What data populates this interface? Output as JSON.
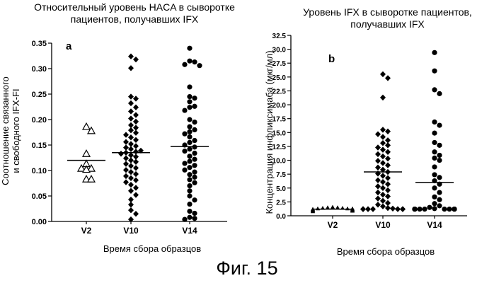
{
  "figure_caption": "Фиг. 15",
  "chart_data": [
    {
      "type": "scatter",
      "panel_label": "a",
      "title": "Относительный уровень HACA в сыворотке пациентов, получавших IFX",
      "title_lines": [
        "Относительный уровень HACA в сыворотке",
        "пациентов, получавших IFX"
      ],
      "xlabel": "Время сбора образцов",
      "ylabel": "Соотношение связанного и свободного IFX-FI",
      "ylabel_lines": [
        "Соотношение связанного",
        "и свободного IFX-FI"
      ],
      "categories": [
        "V2",
        "V10",
        "V14"
      ],
      "ylim": [
        0,
        0.35
      ],
      "yticks": [
        "0.00",
        "0.05",
        "0.10",
        "0.15",
        "0.20",
        "0.25",
        "0.30",
        "0.35"
      ],
      "grid": false,
      "series": [
        {
          "category": "V2",
          "marker": "triangle-open",
          "median": 0.12,
          "values": [
            0.186,
            0.178,
            0.133,
            0.113,
            0.104,
            0.104,
            0.102,
            0.083,
            0.083
          ]
        },
        {
          "category": "V10",
          "marker": "diamond",
          "median": 0.135,
          "values": [
            0.324,
            0.318,
            0.301,
            0.245,
            0.241,
            0.232,
            0.224,
            0.216,
            0.209,
            0.202,
            0.196,
            0.189,
            0.184,
            0.179,
            0.174,
            0.17,
            0.165,
            0.16,
            0.156,
            0.152,
            0.148,
            0.145,
            0.142,
            0.139,
            0.137,
            0.135,
            0.133,
            0.13,
            0.127,
            0.124,
            0.12,
            0.117,
            0.113,
            0.109,
            0.105,
            0.101,
            0.097,
            0.093,
            0.089,
            0.085,
            0.081,
            0.077,
            0.072,
            0.066,
            0.06,
            0.052,
            0.043,
            0.033,
            0.022,
            0.015,
            0.004
          ]
        },
        {
          "category": "V14",
          "marker": "circle",
          "median": 0.147,
          "values": [
            0.34,
            0.315,
            0.313,
            0.308,
            0.306,
            0.264,
            0.245,
            0.242,
            0.235,
            0.226,
            0.224,
            0.218,
            0.2,
            0.195,
            0.186,
            0.18,
            0.176,
            0.172,
            0.166,
            0.159,
            0.155,
            0.15,
            0.146,
            0.142,
            0.138,
            0.134,
            0.128,
            0.122,
            0.118,
            0.114,
            0.11,
            0.106,
            0.101,
            0.097,
            0.092,
            0.087,
            0.082,
            0.076,
            0.07,
            0.06,
            0.05,
            0.042,
            0.034,
            0.02,
            0.016,
            0.008,
            0.006,
            0.004
          ]
        }
      ]
    },
    {
      "type": "scatter",
      "panel_label": "b",
      "title": "Уровень IFX в сыворотке пациентов, получавших IFX",
      "title_lines": [
        "Уровень IFX в сыворотке пациентов,",
        "получавших IFX"
      ],
      "xlabel": "Время сбора образцов",
      "ylabel": "Концентрация инфликсимаба (мкг/мл)",
      "categories": [
        "V2",
        "V10",
        "V14"
      ],
      "ylim": [
        0,
        32.5
      ],
      "yticks": [
        "0.0",
        "2.5",
        "5.0",
        "7.5",
        "10.0",
        "12.5",
        "15.0",
        "17.5",
        "20.0",
        "22.5",
        "25.0",
        "27.5",
        "30.0",
        "32.5"
      ],
      "grid": false,
      "series": [
        {
          "category": "V2",
          "marker": "triangle-filled",
          "median": 1.2,
          "values": [
            1.6,
            1.5,
            1.5,
            1.4,
            1.4,
            1.3,
            1.3,
            1.3,
            1.2,
            1.2,
            1.2,
            1.1,
            1.1,
            1.1,
            1.0,
            1.0,
            1.0,
            0.9,
            0.9,
            0.8
          ]
        },
        {
          "category": "V10",
          "marker": "diamond",
          "median": 7.9,
          "values": [
            25.5,
            24.8,
            21.3,
            15.5,
            15.2,
            14.7,
            14.2,
            13.6,
            13.1,
            12.7,
            12.3,
            11.9,
            11.5,
            11.1,
            10.7,
            10.3,
            9.9,
            9.5,
            9.1,
            8.7,
            8.3,
            7.9,
            7.6,
            7.2,
            6.8,
            6.4,
            6.1,
            5.7,
            5.3,
            5.0,
            4.6,
            4.2,
            3.8,
            3.5,
            3.1,
            2.7,
            2.3,
            2.0,
            1.7,
            1.4,
            1.3,
            1.2,
            1.2,
            1.2,
            1.2,
            1.2,
            1.2,
            1.2
          ]
        },
        {
          "category": "V14",
          "marker": "circle",
          "median": 6.0,
          "values": [
            29.4,
            26.1,
            22.7,
            22.0,
            16.9,
            16.3,
            14.9,
            13.2,
            12.7,
            11.5,
            10.9,
            10.4,
            10.0,
            8.8,
            7.4,
            6.9,
            6.3,
            5.7,
            5.0,
            4.2,
            3.4,
            2.9,
            2.2,
            1.8,
            1.5,
            1.3,
            1.2,
            1.2,
            1.2,
            1.2,
            1.2,
            1.2,
            1.2,
            1.2,
            1.2,
            1.2,
            1.2,
            1.2,
            1.2,
            1.2
          ]
        }
      ]
    }
  ]
}
